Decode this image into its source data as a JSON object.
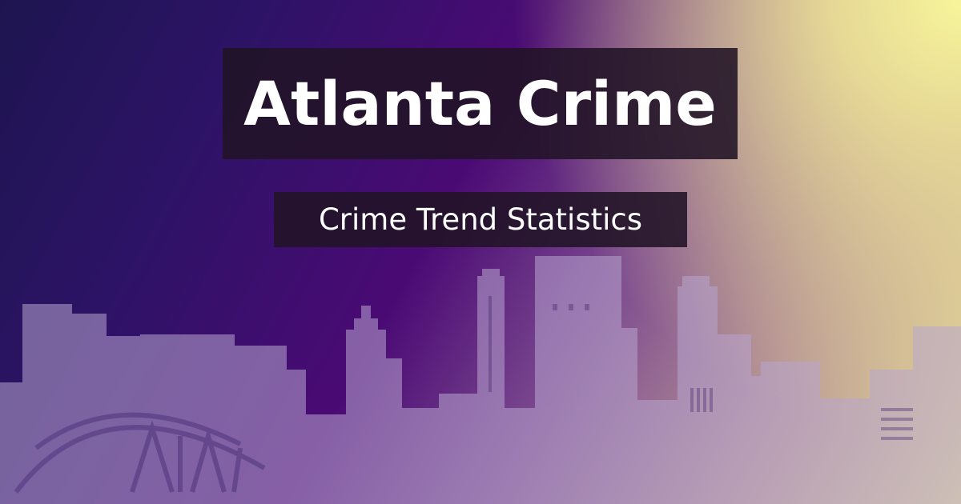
{
  "banner": {
    "title": "Atlanta Crime",
    "subtitle": "Crime Trend Statistics"
  },
  "colors": {
    "background_left": "#1d1550",
    "background_mid": "#4a0a74",
    "background_right": "#f7f59a",
    "box_fill": "#211326",
    "skyline": "#b8a6d0",
    "text": "#ffffff"
  },
  "icons": [
    "atlanta-skyline-illustration",
    "stadium-illustration"
  ]
}
